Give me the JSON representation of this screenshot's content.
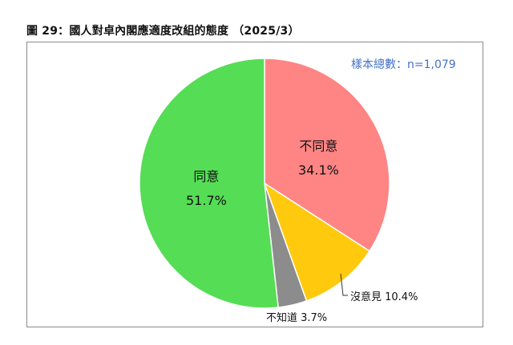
{
  "title": "圖 29：國人對卓內閣應適度改組的態度 （2025/3）",
  "sample_note": "樣本總數：n=1,079",
  "chart_data": {
    "type": "pie",
    "title": "圖 29：國人對卓內閣應適度改組的態度 （2025/3）",
    "annotation": "樣本總數：n=1,079",
    "categories": [
      "不同意",
      "沒意見",
      "不知道",
      "同意"
    ],
    "values": [
      34.1,
      10.4,
      3.7,
      51.7
    ],
    "unit": "%",
    "colors": [
      "#ff8585",
      "#ffc90e",
      "#8c8c8c",
      "#55dd55"
    ],
    "start_angle": "12 o'clock, clockwise",
    "legend": "none (direct labels)"
  },
  "labels": {
    "disagree": {
      "name": "不同意",
      "pct": "34.1%"
    },
    "no_opinion": {
      "name": "沒意見",
      "pct": "10.4%",
      "full": "沒意見 10.4%"
    },
    "dont_know": {
      "name": "不知道",
      "pct": "3.7%",
      "full": "不知道 3.7%"
    },
    "agree": {
      "name": "同意",
      "pct": "51.7%"
    }
  }
}
